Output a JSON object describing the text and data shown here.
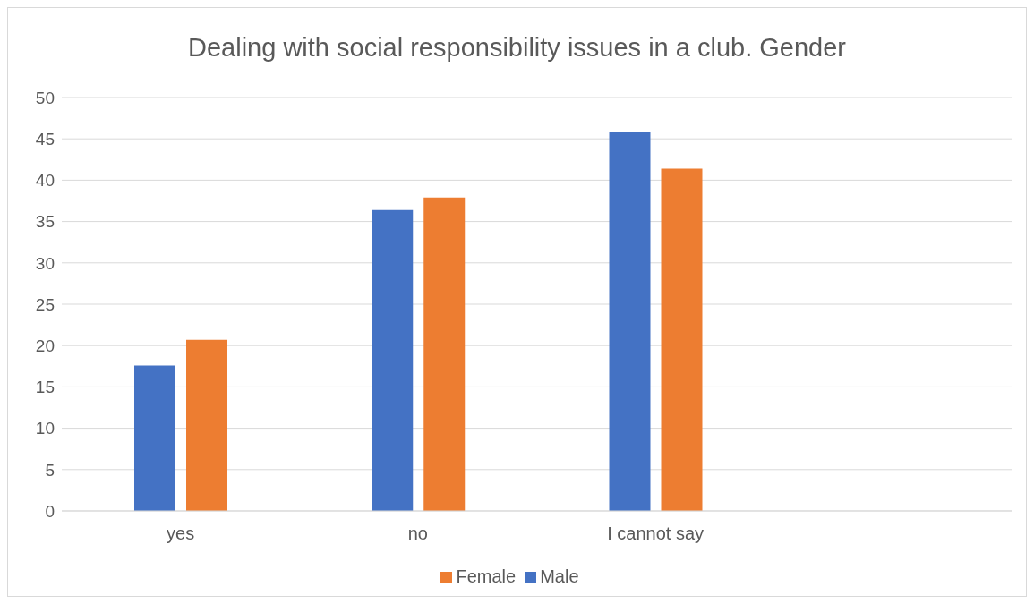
{
  "chart_data": {
    "type": "bar",
    "title": "Dealing with social responsibility issues in a club. Gender",
    "categories": [
      "yes",
      "no",
      "I cannot say",
      null
    ],
    "series": [
      {
        "name": "Male",
        "color": "#4472c4",
        "values": [
          17.6,
          36.4,
          45.9,
          null
        ]
      },
      {
        "name": "Female",
        "color": "#ed7d31",
        "values": [
          20.7,
          37.9,
          41.4,
          null
        ]
      }
    ],
    "ylim": [
      0,
      50
    ],
    "yticks": [
      0,
      5,
      10,
      15,
      20,
      25,
      30,
      35,
      40,
      45,
      50
    ],
    "grid": "y",
    "legend": "bottom"
  }
}
